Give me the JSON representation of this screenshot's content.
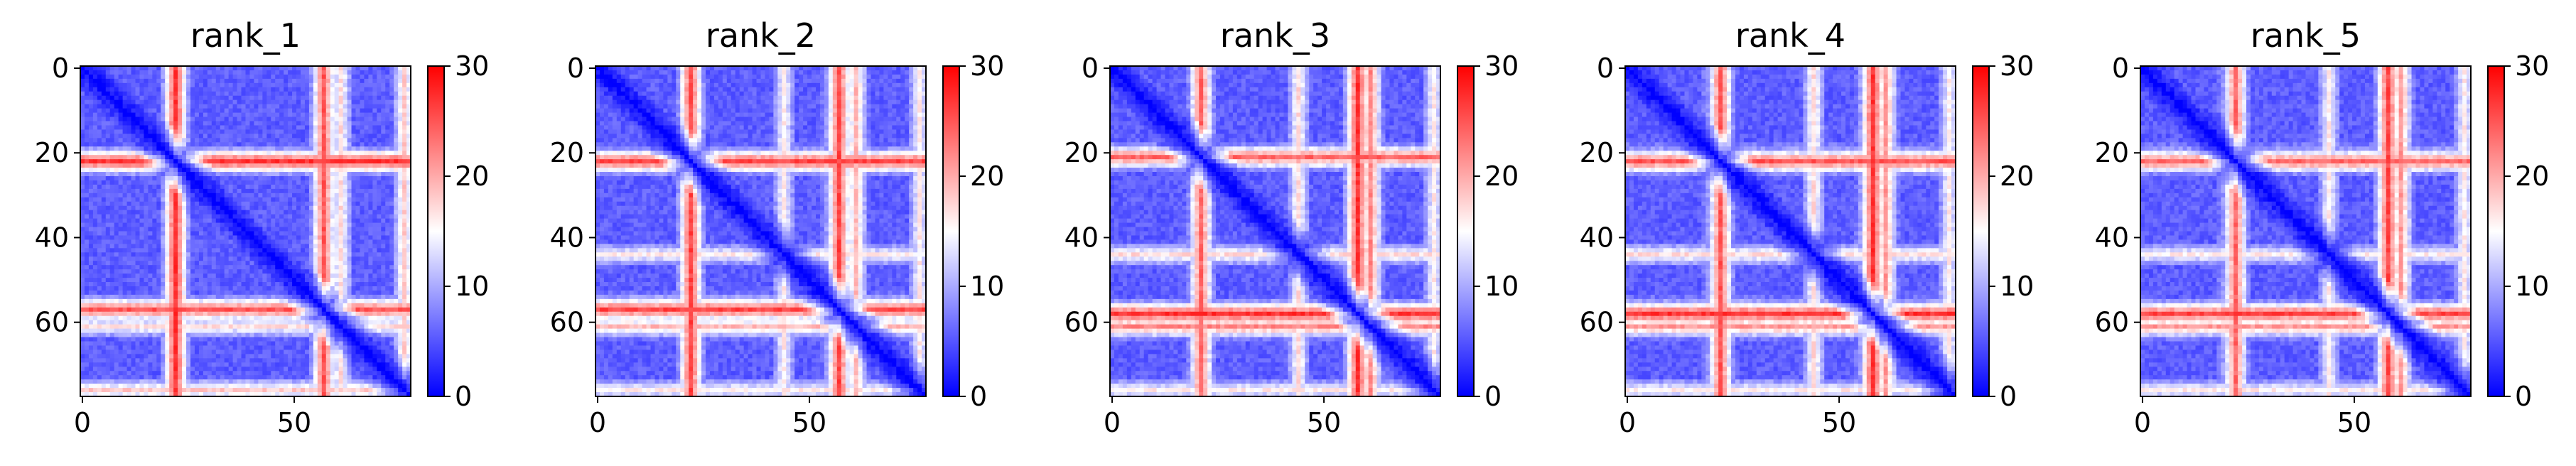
{
  "chart_data": {
    "type": "heatmap",
    "colormap": "bwr",
    "colors": {
      "low": "#0000ff",
      "mid": "#ffffff",
      "high": "#ff0000"
    },
    "vmin": 0,
    "vmax": 30,
    "matrix_size": 78,
    "x_ticks": [
      0,
      50
    ],
    "y_ticks": [
      0,
      20,
      40,
      60
    ],
    "colorbar_ticks": [
      0,
      10,
      20,
      30
    ],
    "panels": [
      {
        "title": "rank_1",
        "bands": [
          [
            22,
            27
          ],
          [
            57,
            25
          ],
          [
            61,
            17
          ],
          [
            76,
            18
          ]
        ],
        "cols": [
          [
            22,
            9
          ],
          [
            60,
            9
          ]
        ]
      },
      {
        "title": "rank_2",
        "bands": [
          [
            22,
            26
          ],
          [
            44,
            16
          ],
          [
            57,
            26
          ],
          [
            61,
            19
          ],
          [
            76,
            16
          ]
        ],
        "cols": [
          [
            20,
            9
          ],
          [
            55,
            12
          ]
        ]
      },
      {
        "title": "rank_3",
        "bands": [
          [
            21,
            24
          ],
          [
            44,
            17
          ],
          [
            58,
            27
          ],
          [
            61,
            22
          ],
          [
            76,
            16
          ]
        ],
        "cols": [
          [
            20,
            9
          ],
          [
            57,
            12
          ]
        ]
      },
      {
        "title": "rank_4",
        "bands": [
          [
            22,
            25
          ],
          [
            44,
            17
          ],
          [
            58,
            27
          ],
          [
            61,
            21
          ],
          [
            76,
            16
          ]
        ],
        "cols": [
          [
            19,
            9
          ],
          [
            56,
            12
          ]
        ]
      },
      {
        "title": "rank_5",
        "bands": [
          [
            22,
            24
          ],
          [
            44,
            16
          ],
          [
            58,
            26
          ],
          [
            61,
            21
          ],
          [
            76,
            16
          ]
        ],
        "cols": [
          [
            19,
            9
          ],
          [
            57,
            12
          ]
        ]
      }
    ]
  }
}
